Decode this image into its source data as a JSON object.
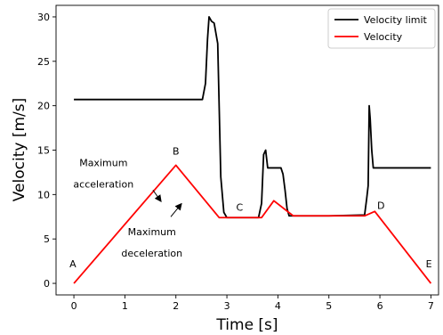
{
  "chart_data": {
    "type": "line",
    "xlabel": "Time [s]",
    "ylabel": "Velocity [m/s]",
    "xlim": [
      -0.35,
      7.15
    ],
    "ylim": [
      -1.3,
      31.3
    ],
    "xticks": [
      0,
      1,
      2,
      3,
      4,
      5,
      6,
      7
    ],
    "yticks": [
      0,
      5,
      10,
      15,
      20,
      25,
      30
    ],
    "grid": false,
    "legend_position": "top-right",
    "series": [
      {
        "name": "Velocity limit",
        "color": "#000000",
        "x": [
          0,
          2.35,
          2.52,
          2.58,
          2.62,
          2.65,
          2.7,
          2.75,
          2.82,
          2.88,
          2.94,
          3.0,
          3.3,
          3.62,
          3.68,
          3.72,
          3.76,
          3.8,
          3.86,
          4.06,
          4.1,
          4.14,
          4.18,
          4.22,
          4.3,
          5.0,
          5.7,
          5.74,
          5.77,
          5.79,
          5.81,
          5.84,
          5.87,
          5.9,
          6.0,
          7.0
        ],
        "y": [
          20.7,
          20.7,
          20.7,
          22.5,
          27.5,
          30.0,
          29.5,
          29.3,
          27.0,
          12.0,
          8.0,
          7.4,
          7.4,
          7.4,
          9.0,
          14.5,
          15.0,
          13.0,
          13.0,
          13.0,
          12.3,
          10.5,
          8.4,
          7.6,
          7.6,
          7.6,
          7.7,
          9.5,
          11.0,
          20.0,
          18.5,
          15.0,
          13.0,
          13.0,
          13.0,
          13.0
        ]
      },
      {
        "name": "Velocity",
        "color": "#ff0000",
        "x": [
          0,
          2.0,
          2.85,
          3.68,
          3.92,
          4.3,
          5.7,
          5.9,
          7.0
        ],
        "y": [
          0,
          13.3,
          7.4,
          7.4,
          9.3,
          7.6,
          7.6,
          8.1,
          0
        ]
      }
    ],
    "point_labels": [
      {
        "text": "A",
        "x": -0.02,
        "y": 1.8
      },
      {
        "text": "B",
        "x": 2.0,
        "y": 14.5
      },
      {
        "text": "C",
        "x": 3.25,
        "y": 8.2
      },
      {
        "text": "D",
        "x": 6.02,
        "y": 8.4
      },
      {
        "text": "E",
        "x": 6.96,
        "y": 1.8
      }
    ],
    "annotations": [
      {
        "text": "Maximum",
        "x": 0.58,
        "y": 13.2
      },
      {
        "text": "acceleration",
        "x": 0.58,
        "y": 10.8
      },
      {
        "text": "Maximum",
        "x": 1.53,
        "y": 5.4
      },
      {
        "text": "deceleration",
        "x": 1.53,
        "y": 3.0
      }
    ],
    "arrows": [
      {
        "from": [
          1.55,
          10.5
        ],
        "to": [
          1.7,
          9.3
        ]
      },
      {
        "from": [
          1.9,
          7.5
        ],
        "to": [
          2.1,
          8.9
        ]
      }
    ]
  }
}
